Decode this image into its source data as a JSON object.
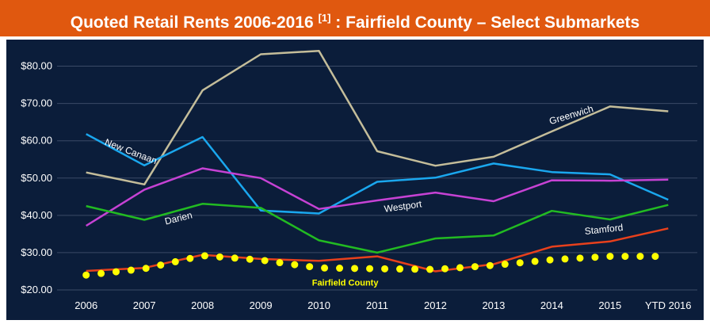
{
  "header": {
    "title_main": "Quoted Retail Rents 2006-2016",
    "title_ref": "[1]",
    "title_rest": ":  Fairfield County – Select Submarkets"
  },
  "chart_data": {
    "type": "line",
    "title": "Quoted Retail Rents 2006-2016 [1] : Fairfield County – Select Submarkets",
    "categories": [
      "2006",
      "2007",
      "2008",
      "2009",
      "2010",
      "2011",
      "2012",
      "2013",
      "2014",
      "2015",
      "YTD 2016"
    ],
    "y_ticks": [
      "$20.00",
      "$30.00",
      "$40.00",
      "$50.00",
      "$60.00",
      "$70.00",
      "$80.00"
    ],
    "ylim": [
      20,
      85
    ],
    "grid": "horizontal",
    "series": [
      {
        "name": "Greenwich",
        "color": "#c4bd9a",
        "style": "solid",
        "values": [
          51.5,
          48.3,
          73.5,
          83.2,
          84.1,
          57.2,
          53.3,
          55.7,
          62.5,
          69.2,
          67.9
        ]
      },
      {
        "name": "New Canaan",
        "color": "#1aa7ee",
        "style": "solid",
        "values": [
          61.8,
          53.4,
          61.0,
          41.3,
          40.5,
          49.0,
          50.1,
          53.9,
          51.6,
          51.0,
          44.2
        ]
      },
      {
        "name": "Westport",
        "color": "#c642d4",
        "style": "solid",
        "values": [
          37.2,
          46.9,
          52.6,
          50.0,
          41.7,
          44.0,
          46.1,
          43.8,
          49.4,
          49.3,
          49.6
        ]
      },
      {
        "name": "Darien",
        "color": "#22bb22",
        "style": "solid",
        "values": [
          42.5,
          38.8,
          43.1,
          42.0,
          33.3,
          30.0,
          33.8,
          34.6,
          41.2,
          38.9,
          42.8
        ]
      },
      {
        "name": "Stamford",
        "color": "#e8401c",
        "style": "solid",
        "values": [
          25.1,
          25.9,
          29.4,
          28.3,
          27.8,
          29.0,
          25.0,
          26.9,
          31.6,
          33.0,
          36.5
        ]
      },
      {
        "name": "Fairfield County",
        "color": "#ffff00",
        "style": "dotted",
        "values": [
          24.0,
          25.7,
          29.2,
          28.0,
          25.9,
          25.7,
          25.5,
          26.6,
          28.1,
          29.0,
          29.0
        ]
      }
    ]
  }
}
